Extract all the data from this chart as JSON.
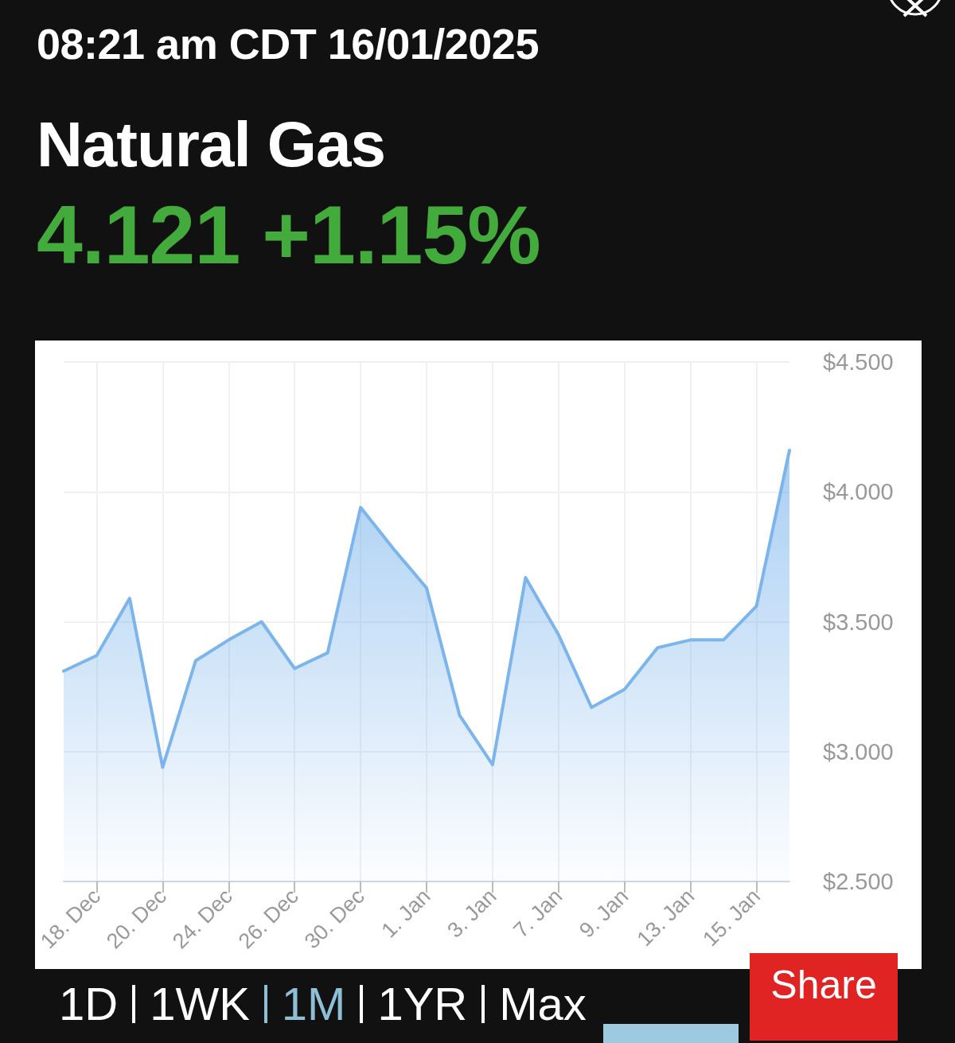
{
  "chart_data": {
    "type": "area",
    "title": "Natural Gas",
    "subtitle": "4.121 +1.15%",
    "annotations": [
      "08:21 am CDT 16/01/2025",
      "1D",
      "1WK",
      "1M",
      "1YR",
      "Max",
      "Share"
    ],
    "categories": [
      null,
      "18. Dec",
      null,
      "20. Dec",
      null,
      "24. Dec",
      null,
      "26. Dec",
      null,
      "30. Dec",
      null,
      "1. Jan",
      null,
      "3. Jan",
      null,
      "7. Jan",
      null,
      "9. Jan",
      null,
      "13. Jan",
      null,
      "15. Jan",
      null
    ],
    "series": [
      {
        "color": "#7cb5ec",
        "values": [
          3.31,
          3.37,
          3.59,
          2.94,
          3.35,
          3.43,
          3.5,
          3.32,
          3.38,
          3.94,
          3.78,
          3.63,
          3.14,
          2.95,
          3.67,
          3.45,
          3.17,
          3.24,
          3.4,
          3.43,
          3.43,
          3.56,
          4.16
        ]
      }
    ],
    "ylim": [
      2.5,
      4.5
    ],
    "yticks": [
      {
        "value": 2.5,
        "label": "$2.500"
      },
      {
        "value": 3,
        "label": "$3.000"
      },
      {
        "value": 3.5,
        "label": "$3.500"
      },
      {
        "value": 4,
        "label": "$4.000"
      },
      {
        "value": 4.5,
        "label": "$4.500"
      }
    ],
    "grid": true,
    "marker": "none",
    "line_style": "solid"
  }
}
